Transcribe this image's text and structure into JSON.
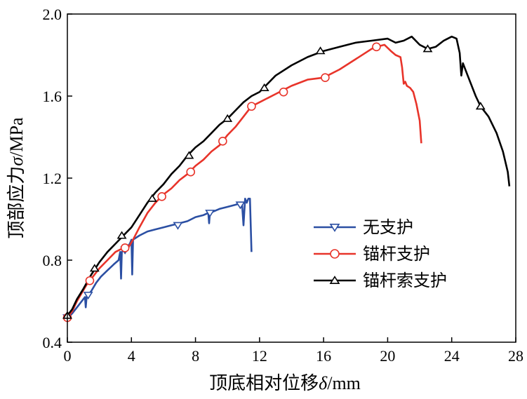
{
  "chart_data": {
    "type": "line",
    "xlabel": {
      "prefix": "顶底相对位移",
      "symbol": "δ",
      "unit": "/mm"
    },
    "ylabel": {
      "prefix": "顶部应力",
      "symbol": "σ",
      "unit": "/MPa"
    },
    "xlim": [
      0,
      28
    ],
    "ylim": [
      0.4,
      2.0
    ],
    "xticks": [
      0,
      4,
      8,
      12,
      16,
      20,
      24,
      28
    ],
    "yticks": [
      0.4,
      0.8,
      1.2,
      1.6,
      2.0
    ],
    "xtick_labels": [
      "0",
      "4",
      "8",
      "12",
      "16",
      "20",
      "24",
      "28"
    ],
    "ytick_labels": [
      "0.4",
      "0.8",
      "1.2",
      "1.6",
      "2.0"
    ],
    "grid": false,
    "legend_position": "middle-right",
    "series": [
      {
        "name": "无支护",
        "color": "#2b4fa3",
        "marker": "triangle-down",
        "points": [
          [
            0,
            0.52
          ],
          [
            0.3,
            0.54
          ],
          [
            0.6,
            0.57
          ],
          [
            0.9,
            0.6
          ],
          [
            1.1,
            0.62
          ],
          [
            1.15,
            0.57
          ],
          [
            1.2,
            0.62
          ],
          [
            1.5,
            0.65
          ],
          [
            1.8,
            0.69
          ],
          [
            2.1,
            0.72
          ],
          [
            2.5,
            0.75
          ],
          [
            2.9,
            0.78
          ],
          [
            3.2,
            0.8
          ],
          [
            3.3,
            0.84
          ],
          [
            3.35,
            0.71
          ],
          [
            3.4,
            0.84
          ],
          [
            3.7,
            0.86
          ],
          [
            3.9,
            0.88
          ],
          [
            4.0,
            0.9
          ],
          [
            4.05,
            0.73
          ],
          [
            4.1,
            0.9
          ],
          [
            4.5,
            0.92
          ],
          [
            5,
            0.94
          ],
          [
            5.5,
            0.95
          ],
          [
            6,
            0.96
          ],
          [
            6.5,
            0.97
          ],
          [
            7,
            0.98
          ],
          [
            7.5,
            0.99
          ],
          [
            8,
            1.01
          ],
          [
            8.5,
            1.02
          ],
          [
            8.8,
            1.03
          ],
          [
            8.85,
            0.98
          ],
          [
            8.9,
            1.03
          ],
          [
            9.5,
            1.05
          ],
          [
            10,
            1.06
          ],
          [
            10.5,
            1.07
          ],
          [
            10.9,
            1.08
          ],
          [
            11.0,
            0.97
          ],
          [
            11.1,
            1.1
          ],
          [
            11.2,
            1.08
          ],
          [
            11.3,
            1.1
          ],
          [
            11.4,
            1.1
          ],
          [
            11.5,
            0.84
          ]
        ],
        "markers": [
          [
            0,
            0.52
          ],
          [
            1.3,
            0.63
          ],
          [
            3.6,
            0.85
          ],
          [
            6.9,
            0.97
          ],
          [
            8.9,
            1.03
          ],
          [
            10.8,
            1.07
          ]
        ]
      },
      {
        "name": "锚杆支护",
        "color": "#e8342a",
        "marker": "circle",
        "points": [
          [
            0,
            0.52
          ],
          [
            0.3,
            0.55
          ],
          [
            0.6,
            0.6
          ],
          [
            0.9,
            0.64
          ],
          [
            1.2,
            0.68
          ],
          [
            1.6,
            0.72
          ],
          [
            2,
            0.76
          ],
          [
            2.5,
            0.8
          ],
          [
            3,
            0.84
          ],
          [
            3.5,
            0.86
          ],
          [
            3.8,
            0.86
          ],
          [
            4.1,
            0.9
          ],
          [
            4.5,
            0.96
          ],
          [
            5,
            1.03
          ],
          [
            5.5,
            1.08
          ],
          [
            6,
            1.12
          ],
          [
            6.5,
            1.15
          ],
          [
            7,
            1.19
          ],
          [
            7.5,
            1.22
          ],
          [
            8,
            1.26
          ],
          [
            8.5,
            1.29
          ],
          [
            9,
            1.33
          ],
          [
            9.5,
            1.36
          ],
          [
            10,
            1.41
          ],
          [
            10.5,
            1.45
          ],
          [
            11,
            1.5
          ],
          [
            11.5,
            1.55
          ],
          [
            12,
            1.57
          ],
          [
            13,
            1.61
          ],
          [
            14,
            1.65
          ],
          [
            15,
            1.68
          ],
          [
            16,
            1.69
          ],
          [
            17,
            1.73
          ],
          [
            18,
            1.78
          ],
          [
            19,
            1.83
          ],
          [
            19.3,
            1.84
          ],
          [
            19.8,
            1.85
          ],
          [
            20.2,
            1.82
          ],
          [
            20.5,
            1.8
          ],
          [
            20.8,
            1.79
          ],
          [
            20.9,
            1.74
          ],
          [
            21.0,
            1.66
          ],
          [
            21.1,
            1.67
          ],
          [
            21.2,
            1.65
          ],
          [
            21.4,
            1.64
          ],
          [
            21.6,
            1.62
          ],
          [
            21.8,
            1.56
          ],
          [
            22.0,
            1.48
          ],
          [
            22.1,
            1.37
          ]
        ],
        "markers": [
          [
            0,
            0.52
          ],
          [
            1.4,
            0.7
          ],
          [
            3.6,
            0.86
          ],
          [
            5.9,
            1.11
          ],
          [
            7.7,
            1.23
          ],
          [
            9.7,
            1.38
          ],
          [
            11.5,
            1.55
          ],
          [
            13.5,
            1.62
          ],
          [
            16.1,
            1.69
          ],
          [
            19.3,
            1.84
          ]
        ]
      },
      {
        "name": "锚杆索支护",
        "color": "#000000",
        "marker": "triangle-up",
        "points": [
          [
            0,
            0.53
          ],
          [
            0.3,
            0.56
          ],
          [
            0.6,
            0.61
          ],
          [
            1,
            0.66
          ],
          [
            1.5,
            0.73
          ],
          [
            2,
            0.79
          ],
          [
            2.5,
            0.84
          ],
          [
            3,
            0.88
          ],
          [
            3.5,
            0.92
          ],
          [
            4,
            0.96
          ],
          [
            4.5,
            1.02
          ],
          [
            5,
            1.08
          ],
          [
            5.5,
            1.13
          ],
          [
            6,
            1.17
          ],
          [
            6.5,
            1.22
          ],
          [
            7,
            1.26
          ],
          [
            7.5,
            1.31
          ],
          [
            8,
            1.35
          ],
          [
            8.5,
            1.38
          ],
          [
            9,
            1.42
          ],
          [
            9.5,
            1.46
          ],
          [
            10,
            1.49
          ],
          [
            10.5,
            1.53
          ],
          [
            11,
            1.57
          ],
          [
            11.5,
            1.6
          ],
          [
            12,
            1.62
          ],
          [
            12.5,
            1.66
          ],
          [
            13,
            1.7
          ],
          [
            14,
            1.75
          ],
          [
            15,
            1.79
          ],
          [
            16,
            1.82
          ],
          [
            17,
            1.84
          ],
          [
            18,
            1.86
          ],
          [
            19,
            1.87
          ],
          [
            20,
            1.88
          ],
          [
            20.5,
            1.86
          ],
          [
            21,
            1.87
          ],
          [
            21.5,
            1.89
          ],
          [
            22,
            1.85
          ],
          [
            22.5,
            1.83
          ],
          [
            23,
            1.84
          ],
          [
            23.5,
            1.87
          ],
          [
            24,
            1.89
          ],
          [
            24.3,
            1.88
          ],
          [
            24.5,
            1.81
          ],
          [
            24.6,
            1.7
          ],
          [
            24.7,
            1.76
          ],
          [
            25,
            1.7
          ],
          [
            25.5,
            1.6
          ],
          [
            25.8,
            1.55
          ],
          [
            26.3,
            1.5
          ],
          [
            26.8,
            1.42
          ],
          [
            27.2,
            1.33
          ],
          [
            27.5,
            1.23
          ],
          [
            27.6,
            1.16
          ]
        ],
        "markers": [
          [
            0,
            0.53
          ],
          [
            1.7,
            0.76
          ],
          [
            3.4,
            0.92
          ],
          [
            5.3,
            1.1
          ],
          [
            7.6,
            1.31
          ],
          [
            10.0,
            1.49
          ],
          [
            12.3,
            1.64
          ],
          [
            15.8,
            1.82
          ],
          [
            22.5,
            1.83
          ],
          [
            25.8,
            1.55
          ]
        ]
      }
    ]
  }
}
